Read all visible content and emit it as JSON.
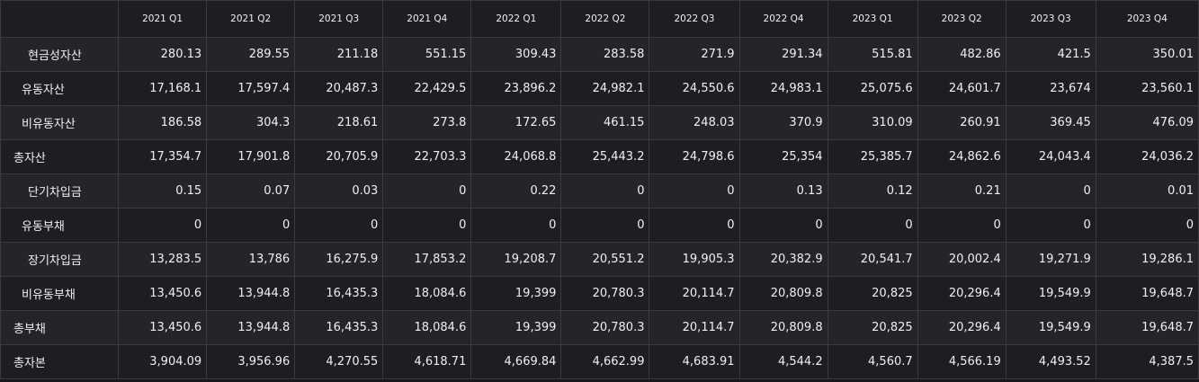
{
  "table": {
    "columns": [
      "2021 Q1",
      "2021 Q2",
      "2021 Q3",
      "2021 Q4",
      "2022 Q1",
      "2022 Q2",
      "2022 Q3",
      "2022 Q4",
      "2023 Q1",
      "2023 Q2",
      "2023 Q3",
      "2023 Q4"
    ],
    "rows": [
      {
        "label": "현금성자산",
        "indent": 1,
        "values": [
          "280.13",
          "289.55",
          "211.18",
          "551.15",
          "309.43",
          "283.58",
          "271.9",
          "291.34",
          "515.81",
          "482.86",
          "421.5",
          "350.01"
        ]
      },
      {
        "label": "유동자산",
        "indent": 2,
        "values": [
          "17,168.1",
          "17,597.4",
          "20,487.3",
          "22,429.5",
          "23,896.2",
          "24,982.1",
          "24,550.6",
          "24,983.1",
          "25,075.6",
          "24,601.7",
          "23,674",
          "23,560.1"
        ]
      },
      {
        "label": "비유동자산",
        "indent": 2,
        "values": [
          "186.58",
          "304.3",
          "218.61",
          "273.8",
          "172.65",
          "461.15",
          "248.03",
          "370.9",
          "310.09",
          "260.91",
          "369.45",
          "476.09"
        ]
      },
      {
        "label": "총자산",
        "indent": 3,
        "values": [
          "17,354.7",
          "17,901.8",
          "20,705.9",
          "22,703.3",
          "24,068.8",
          "25,443.2",
          "24,798.6",
          "25,354",
          "25,385.7",
          "24,862.6",
          "24,043.4",
          "24,036.2"
        ]
      },
      {
        "label": "단기차입금",
        "indent": 1,
        "values": [
          "0.15",
          "0.07",
          "0.03",
          "0",
          "0.22",
          "0",
          "0",
          "0.13",
          "0.12",
          "0.21",
          "0",
          "0.01"
        ]
      },
      {
        "label": "유동부채",
        "indent": 2,
        "values": [
          "0",
          "0",
          "0",
          "0",
          "0",
          "0",
          "0",
          "0",
          "0",
          "0",
          "0",
          "0"
        ]
      },
      {
        "label": "장기차입금",
        "indent": 1,
        "values": [
          "13,283.5",
          "13,786",
          "16,275.9",
          "17,853.2",
          "19,208.7",
          "20,551.2",
          "19,905.3",
          "20,382.9",
          "20,541.7",
          "20,002.4",
          "19,271.9",
          "19,286.1"
        ]
      },
      {
        "label": "비유동부채",
        "indent": 2,
        "values": [
          "13,450.6",
          "13,944.8",
          "16,435.3",
          "18,084.6",
          "19,399",
          "20,780.3",
          "20,114.7",
          "20,809.8",
          "20,825",
          "20,296.4",
          "19,549.9",
          "19,648.7"
        ]
      },
      {
        "label": "총부채",
        "indent": 3,
        "values": [
          "13,450.6",
          "13,944.8",
          "16,435.3",
          "18,084.6",
          "19,399",
          "20,780.3",
          "20,114.7",
          "20,809.8",
          "20,825",
          "20,296.4",
          "19,549.9",
          "19,648.7"
        ]
      },
      {
        "label": "총자본",
        "indent": 3,
        "values": [
          "3,904.09",
          "3,956.96",
          "4,270.55",
          "4,618.71",
          "4,669.84",
          "4,662.99",
          "4,683.91",
          "4,544.2",
          "4,560.7",
          "4,566.19",
          "4,493.52",
          "4,387.5"
        ]
      }
    ]
  }
}
